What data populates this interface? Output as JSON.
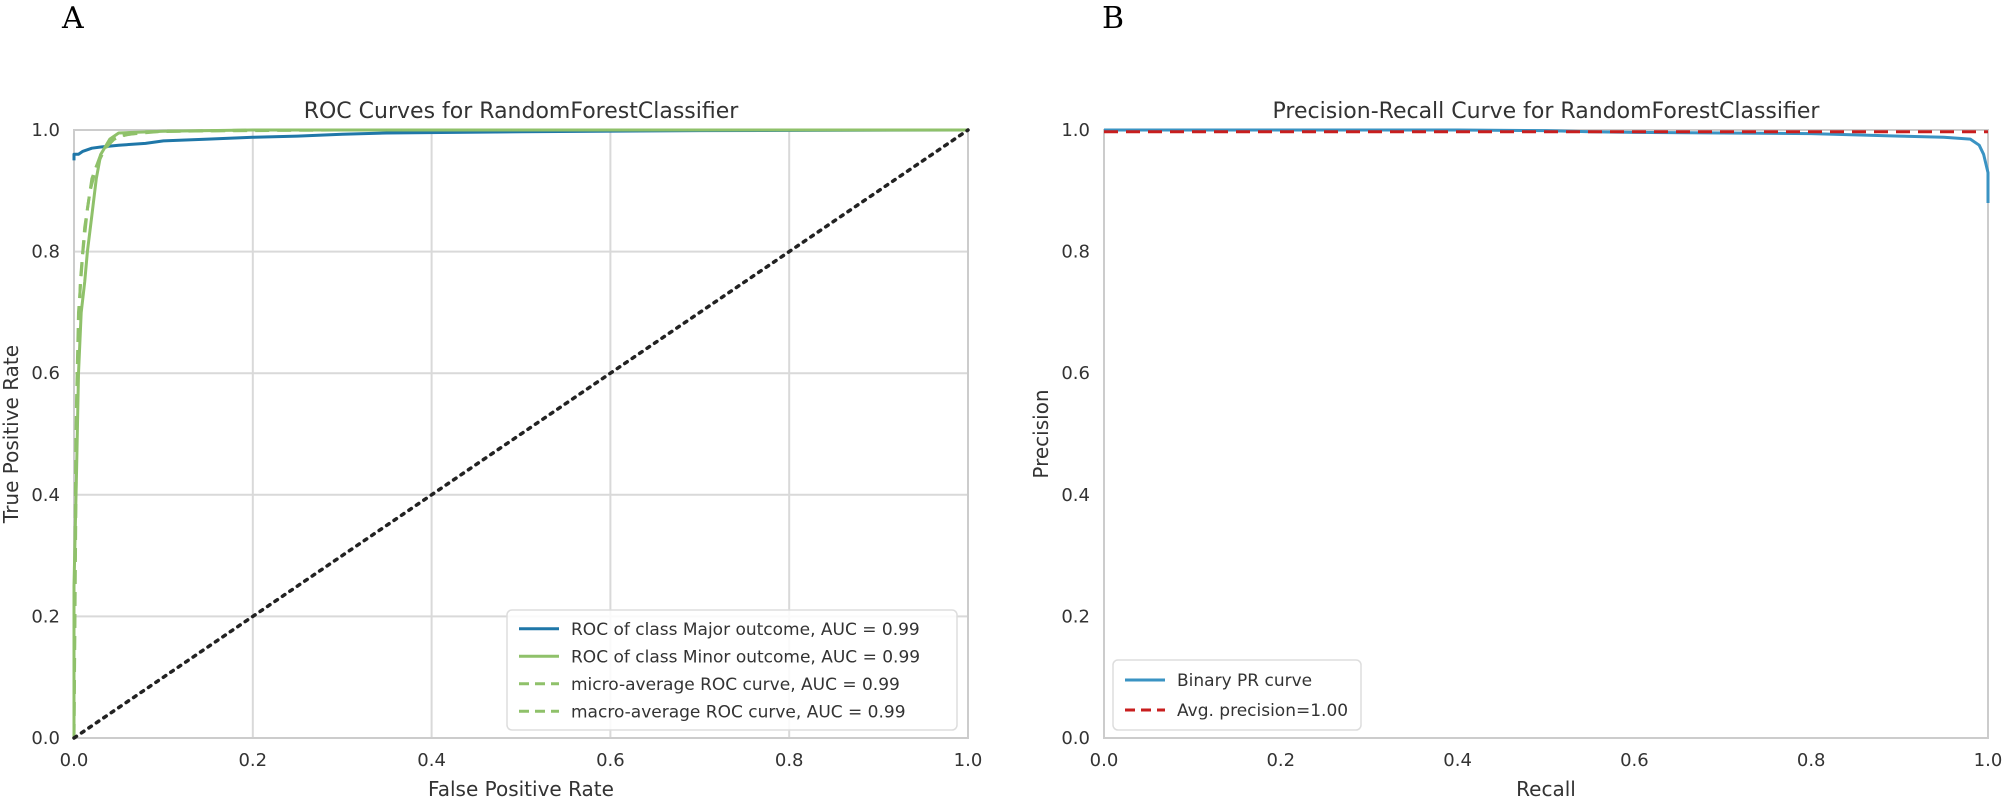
{
  "panels": {
    "left_letter": "A",
    "right_letter": "B"
  },
  "colors": {
    "major": "#1f77a8",
    "minor": "#8fc16a",
    "pr_curve": "#3a93c3",
    "avg_precision": "#c81e1e",
    "diagonal": "#222222",
    "grid": "#d9d9d9"
  },
  "chart_data": [
    {
      "type": "line",
      "title": "ROC Curves for RandomForestClassifier",
      "xlabel": "False Positive Rate",
      "ylabel": "True Positive Rate",
      "xlim": [
        0,
        1
      ],
      "ylim": [
        0,
        1
      ],
      "xticks": [
        "0.0",
        "0.2",
        "0.4",
        "0.6",
        "0.8",
        "1.0"
      ],
      "yticks": [
        "0.0",
        "0.2",
        "0.4",
        "0.6",
        "0.8",
        "1.0"
      ],
      "grid": true,
      "legend_position": "lower-right",
      "series": [
        {
          "name": "ROC of class Major outcome, AUC = 0.99",
          "style": "solid",
          "color_key": "major",
          "x": [
            0.0,
            0.0,
            0.005,
            0.01,
            0.02,
            0.03,
            0.05,
            0.08,
            0.1,
            0.15,
            0.2,
            0.25,
            0.3,
            0.35,
            0.5,
            0.7,
            1.0
          ],
          "y": [
            0.95,
            0.96,
            0.96,
            0.965,
            0.97,
            0.972,
            0.975,
            0.978,
            0.982,
            0.985,
            0.988,
            0.99,
            0.993,
            0.995,
            0.997,
            0.999,
            1.0
          ]
        },
        {
          "name": "ROC of class Minor outcome, AUC = 0.99",
          "style": "solid",
          "color_key": "minor",
          "x": [
            0.0,
            0.0,
            0.003,
            0.005,
            0.008,
            0.012,
            0.015,
            0.02,
            0.025,
            0.03,
            0.04,
            0.05,
            0.1,
            0.2,
            0.4,
            1.0
          ],
          "y": [
            0.0,
            0.25,
            0.45,
            0.6,
            0.7,
            0.75,
            0.8,
            0.86,
            0.92,
            0.96,
            0.985,
            0.995,
            0.998,
            1.0,
            1.0,
            1.0
          ]
        },
        {
          "name": "micro-average ROC curve, AUC = 0.99",
          "style": "dashed",
          "color_key": "minor",
          "x": [
            0.0,
            0.002,
            0.005,
            0.01,
            0.015,
            0.02,
            0.03,
            0.04,
            0.05,
            0.08,
            0.2,
            1.0
          ],
          "y": [
            0.0,
            0.5,
            0.7,
            0.8,
            0.87,
            0.92,
            0.96,
            0.98,
            0.99,
            0.997,
            1.0,
            1.0
          ]
        },
        {
          "name": "macro-average ROC curve, AUC = 0.99",
          "style": "dashed",
          "color_key": "minor",
          "x": [
            0.0,
            0.003,
            0.007,
            0.012,
            0.018,
            0.025,
            0.035,
            0.045,
            0.06,
            0.1,
            0.3,
            1.0
          ],
          "y": [
            0.0,
            0.55,
            0.75,
            0.84,
            0.9,
            0.94,
            0.97,
            0.985,
            0.993,
            0.998,
            1.0,
            1.0
          ]
        },
        {
          "name": "",
          "style": "dotted",
          "color_key": "diagonal",
          "x": [
            0.0,
            1.0
          ],
          "y": [
            0.0,
            1.0
          ]
        }
      ]
    },
    {
      "type": "line",
      "title": "Precision-Recall Curve for RandomForestClassifier",
      "xlabel": "Recall",
      "ylabel": "Precision",
      "xlim": [
        0,
        1
      ],
      "ylim": [
        0,
        1
      ],
      "xticks": [
        "0.0",
        "0.2",
        "0.4",
        "0.6",
        "0.8",
        "1.0"
      ],
      "yticks": [
        "0.0",
        "0.2",
        "0.4",
        "0.6",
        "0.8",
        "1.0"
      ],
      "grid": false,
      "legend_position": "lower-left",
      "series": [
        {
          "name": "Binary PR curve",
          "style": "solid",
          "color_key": "pr_curve",
          "x": [
            0.0,
            0.2,
            0.4,
            0.5,
            0.55,
            0.6,
            0.7,
            0.8,
            0.85,
            0.9,
            0.95,
            0.98,
            0.99,
            0.995,
            1.0,
            1.0
          ],
          "y": [
            1.0,
            1.0,
            1.0,
            0.999,
            0.997,
            0.996,
            0.995,
            0.994,
            0.992,
            0.99,
            0.988,
            0.985,
            0.975,
            0.96,
            0.93,
            0.88
          ]
        },
        {
          "name": "Avg. precision=1.00",
          "style": "dashed",
          "color_key": "avg_precision",
          "x": [
            0.0,
            1.0
          ],
          "y": [
            0.997,
            0.997
          ]
        }
      ]
    }
  ]
}
